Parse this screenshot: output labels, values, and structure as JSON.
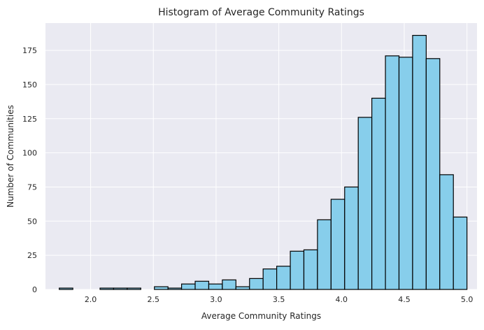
{
  "chart_data": {
    "type": "bar",
    "title": "Histogram of Average Community Ratings",
    "xlabel": "Average Community Ratings",
    "ylabel": "Number of Communities",
    "xlim": [
      1.64,
      5.08
    ],
    "ylim": [
      0,
      195
    ],
    "x_ticks": [
      2.0,
      2.5,
      3.0,
      3.5,
      4.0,
      4.5,
      5.0
    ],
    "y_ticks": [
      0,
      25,
      50,
      75,
      100,
      125,
      150,
      175
    ],
    "bin_edges": [
      1.75,
      1.8583,
      1.9667,
      2.075,
      2.1833,
      2.2917,
      2.4,
      2.5083,
      2.6167,
      2.725,
      2.8333,
      2.9417,
      3.05,
      3.1583,
      3.2667,
      3.375,
      3.4833,
      3.5917,
      3.7,
      3.8083,
      3.9167,
      4.025,
      4.1333,
      4.2417,
      4.35,
      4.4583,
      4.5667,
      4.675,
      4.7833,
      4.8917,
      5.0
    ],
    "values": [
      1,
      0,
      0,
      1,
      1,
      1,
      0,
      2,
      1,
      4,
      6,
      4,
      7,
      2,
      8,
      15,
      17,
      28,
      29,
      51,
      66,
      75,
      126,
      140,
      171,
      170,
      186,
      169,
      84,
      53
    ],
    "grid": true,
    "colors": {
      "bar_fill": "#87ceeb",
      "bar_edge": "#000000",
      "plot_bg": "#eaeaf2",
      "grid": "#ffffff"
    }
  }
}
